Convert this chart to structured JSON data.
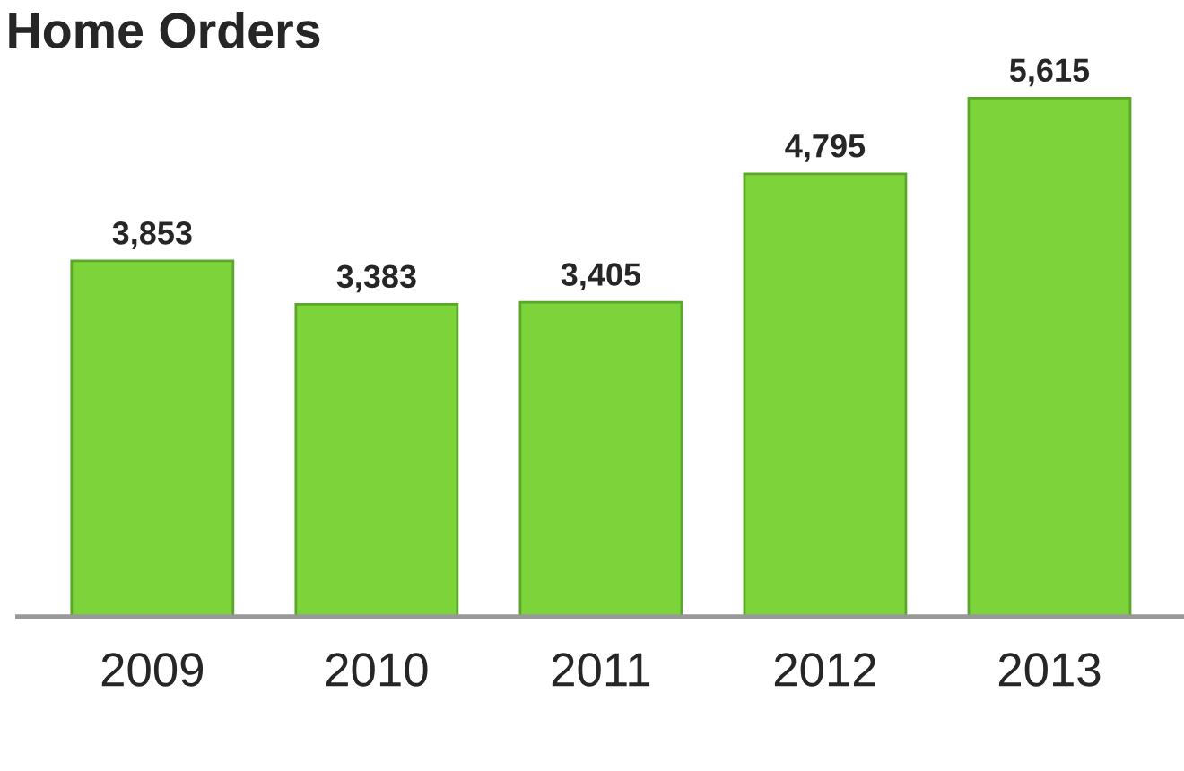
{
  "chart_data": {
    "type": "bar",
    "title": "Home Orders",
    "categories": [
      "2009",
      "2010",
      "2011",
      "2012",
      "2013"
    ],
    "values": [
      3853,
      3383,
      3405,
      4795,
      5615
    ],
    "value_labels": [
      "3,853",
      "3,383",
      "3,405",
      "4,795",
      "5,615"
    ],
    "color": "#7dd33a",
    "grid": false,
    "legend": false
  }
}
